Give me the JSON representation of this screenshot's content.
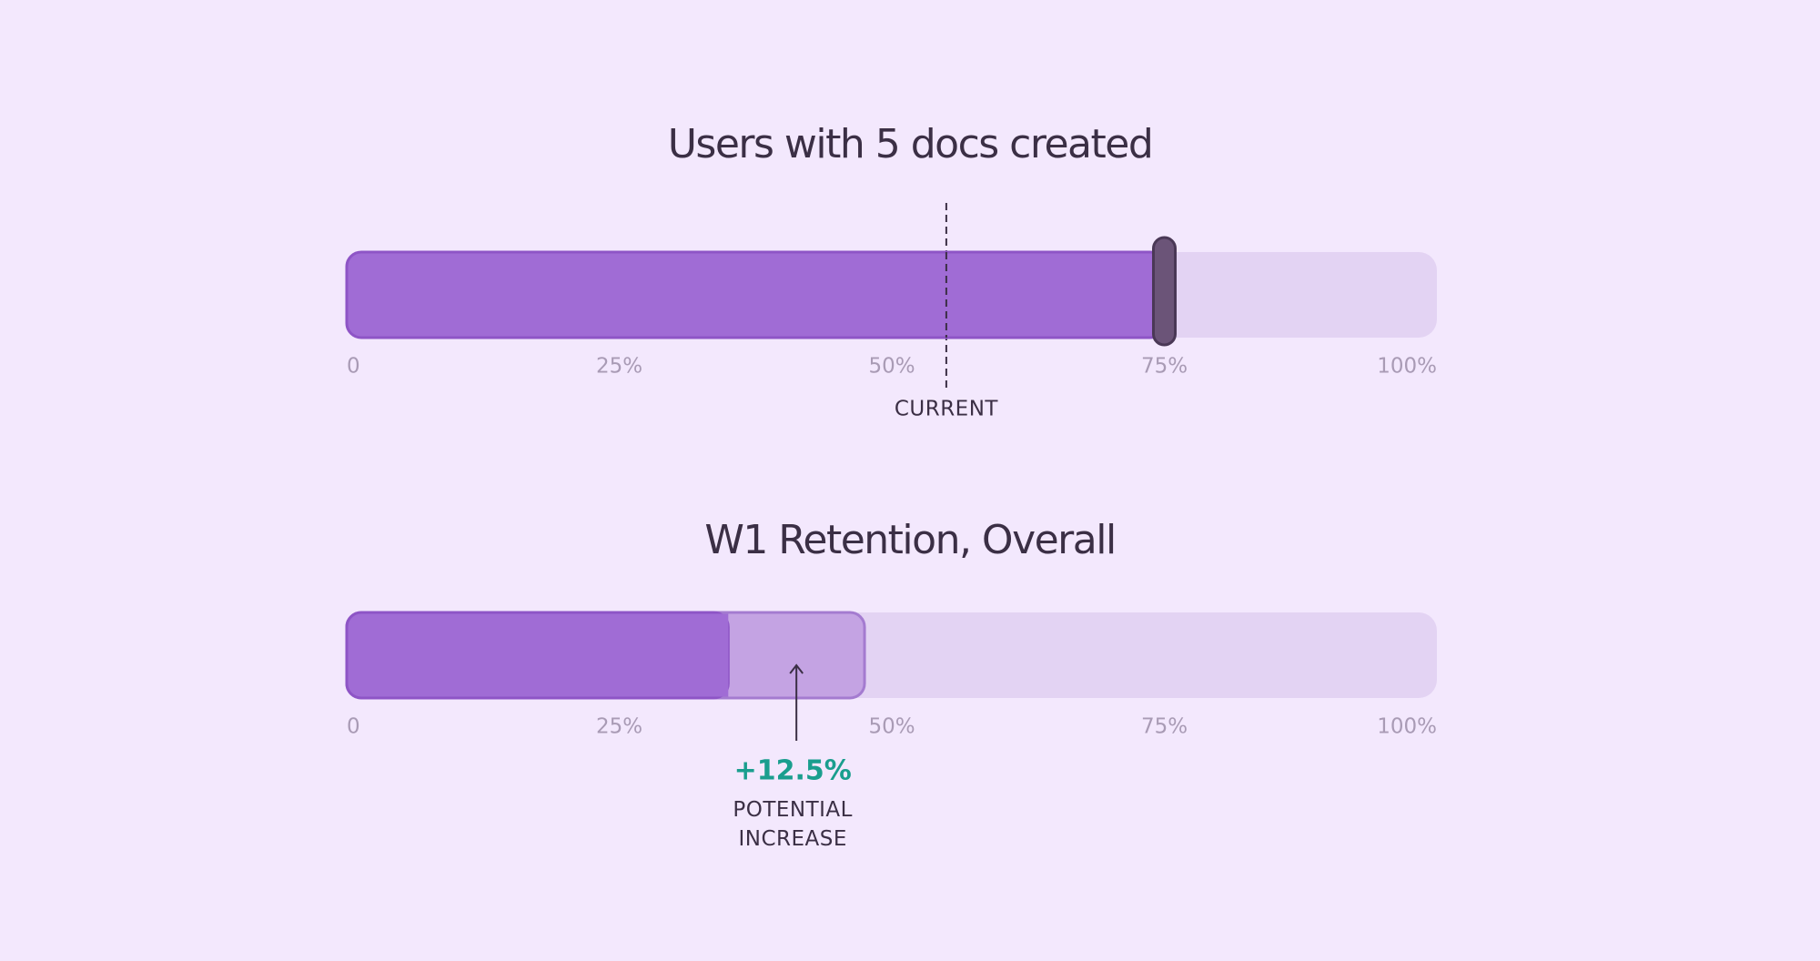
{
  "chart_data": [
    {
      "type": "slider",
      "title": "Users with 5 docs created",
      "value": 75,
      "marker": 55,
      "marker_label": "CURRENT",
      "xlim": [
        0,
        100
      ],
      "xticks": [
        0,
        {
          "value": 25,
          "label": "25%"
        },
        {
          "value": 50,
          "label": "50%"
        },
        {
          "value": 75,
          "label": "75%"
        },
        {
          "value": 100,
          "label": "100%"
        }
      ],
      "color": "#a06cd5"
    },
    {
      "type": "progress",
      "title": "W1 Retention, Overall",
      "value": 35,
      "increase": 12.5,
      "increase_label": "+12.5%",
      "annotation": "POTENTIAL INCREASE",
      "xlim": [
        0,
        100
      ],
      "xticks": [
        0,
        {
          "value": 25,
          "label": "25%"
        },
        {
          "value": 50,
          "label": "50%"
        },
        {
          "value": 75,
          "label": "75%"
        },
        {
          "value": 100,
          "label": "100%"
        }
      ],
      "color": "#a06cd5",
      "increase_color": "#c4a3e3"
    }
  ]
}
